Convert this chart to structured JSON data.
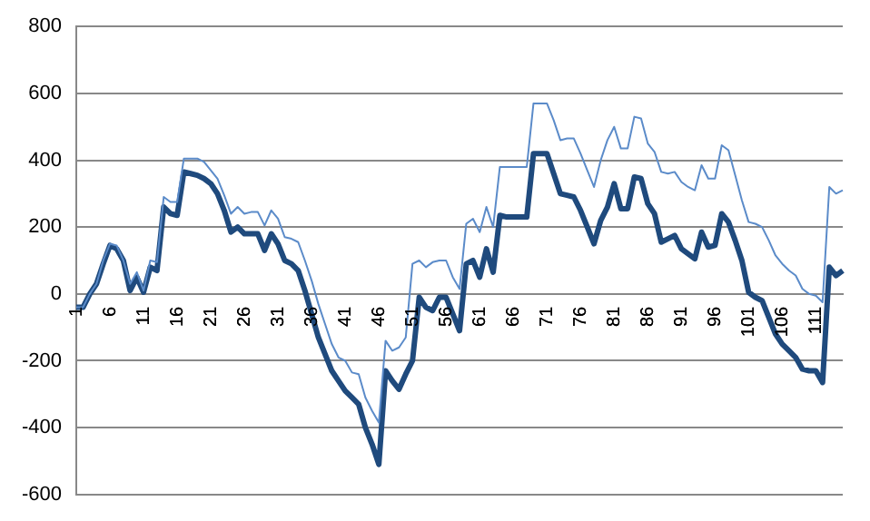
{
  "chart_data": {
    "type": "line",
    "categories": [
      "1",
      null,
      null,
      null,
      null,
      "6",
      null,
      null,
      null,
      null,
      "11",
      null,
      null,
      null,
      null,
      "16",
      null,
      null,
      null,
      null,
      "21",
      null,
      null,
      null,
      null,
      "26",
      null,
      null,
      null,
      null,
      "31",
      null,
      null,
      null,
      null,
      "36",
      null,
      null,
      null,
      null,
      "41",
      null,
      null,
      null,
      null,
      "46",
      null,
      null,
      null,
      null,
      "51",
      null,
      null,
      null,
      null,
      "56",
      null,
      null,
      null,
      null,
      "61",
      null,
      null,
      null,
      null,
      "66",
      null,
      null,
      null,
      null,
      "71",
      null,
      null,
      null,
      null,
      "76",
      null,
      null,
      null,
      null,
      "81",
      null,
      null,
      null,
      null,
      "86",
      null,
      null,
      null,
      null,
      "91",
      null,
      null,
      null,
      null,
      "96",
      null,
      null,
      null,
      null,
      "101",
      null,
      null,
      null,
      null,
      "106",
      null,
      null,
      null,
      null,
      "111",
      null,
      null,
      null,
      null
    ],
    "series": [
      {
        "color": "#5b8bc9",
        "values": [
          -40,
          -40,
          0,
          30,
          100,
          150,
          145,
          100,
          30,
          65,
          10,
          100,
          95,
          290,
          275,
          275,
          405,
          405,
          405,
          395,
          370,
          345,
          295,
          240,
          260,
          240,
          245,
          245,
          205,
          250,
          225,
          170,
          165,
          155,
          100,
          40,
          -30,
          -90,
          -150,
          -190,
          -200,
          -235,
          -240,
          -310,
          -350,
          -385,
          -140,
          -170,
          -160,
          -130,
          90,
          100,
          80,
          95,
          100,
          100,
          50,
          15,
          210,
          225,
          185,
          260,
          200,
          380,
          380,
          380,
          380,
          380,
          570,
          570,
          570,
          520,
          460,
          465,
          465,
          420,
          370,
          320,
          400,
          460,
          500,
          435,
          435,
          530,
          525,
          450,
          425,
          365,
          360,
          365,
          335,
          320,
          310,
          385,
          345,
          345,
          445,
          430,
          355,
          280,
          215,
          210,
          200,
          160,
          115,
          90,
          70,
          55,
          15,
          0,
          -5,
          -25,
          320,
          300,
          310
        ]
      },
      {
        "color": "#1f4a7d",
        "values": [
          -40,
          -40,
          0,
          30,
          90,
          145,
          135,
          100,
          10,
          50,
          5,
          80,
          70,
          260,
          240,
          235,
          365,
          360,
          355,
          345,
          330,
          300,
          250,
          185,
          200,
          180,
          180,
          180,
          130,
          180,
          150,
          100,
          90,
          70,
          10,
          -60,
          -130,
          -180,
          -230,
          -260,
          -290,
          -310,
          -330,
          -400,
          -450,
          -510,
          -230,
          -260,
          -285,
          -240,
          -200,
          -10,
          -40,
          -50,
          -10,
          -10,
          -60,
          -110,
          90,
          100,
          50,
          135,
          65,
          235,
          230,
          230,
          230,
          230,
          420,
          420,
          420,
          360,
          300,
          295,
          290,
          250,
          200,
          150,
          220,
          260,
          330,
          255,
          255,
          350,
          345,
          270,
          240,
          155,
          165,
          175,
          135,
          120,
          105,
          185,
          140,
          145,
          240,
          215,
          160,
          100,
          5,
          -10,
          -20,
          -70,
          -120,
          -150,
          -170,
          -190,
          -225,
          -230,
          -230,
          -265,
          80,
          55,
          70
        ]
      }
    ],
    "ylim": [
      -600,
      800
    ],
    "yticks": [
      -600,
      -400,
      -200,
      0,
      200,
      400,
      600,
      800
    ],
    "grid": "y",
    "legend": false,
    "marker": "none",
    "line_style": "solid"
  }
}
